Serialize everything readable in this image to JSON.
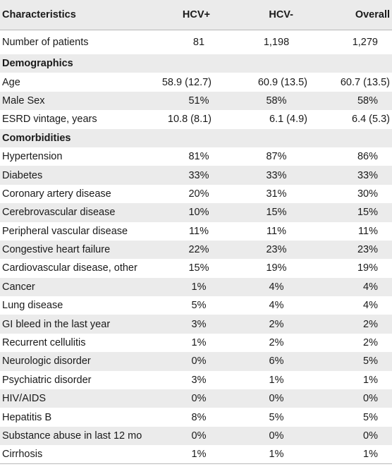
{
  "headers": [
    "Characteristics",
    "HCV+",
    "HCV-",
    "Overall"
  ],
  "rows": [
    {
      "label": "Number of patients",
      "hcv_pos": "81",
      "hcv_neg": "1,198",
      "overall": "1,279",
      "type": "center"
    },
    {
      "label": "Demographics",
      "type": "section"
    },
    {
      "label": "Age",
      "hcv_pos": "58.9 (12.7)",
      "hcv_neg": "60.9 (13.5)",
      "overall": "60.7 (13.5)",
      "type": "right"
    },
    {
      "label": "Male Sex",
      "hcv_pos": "51%",
      "hcv_neg": "58%",
      "overall": "58%",
      "type": "center"
    },
    {
      "label": "ESRD vintage, years",
      "hcv_pos": "10.8 (8.1)",
      "hcv_neg": "6.1 (4.9)",
      "overall": "6.4 (5.3)",
      "type": "right"
    },
    {
      "label": "Comorbidities",
      "type": "section"
    },
    {
      "label": "Hypertension",
      "hcv_pos": "81%",
      "hcv_neg": "87%",
      "overall": "86%",
      "type": "center"
    },
    {
      "label": "Diabetes",
      "hcv_pos": "33%",
      "hcv_neg": "33%",
      "overall": "33%",
      "type": "center"
    },
    {
      "label": "Coronary artery disease",
      "hcv_pos": "20%",
      "hcv_neg": "31%",
      "overall": "30%",
      "type": "center"
    },
    {
      "label": "Cerebrovascular disease",
      "hcv_pos": "10%",
      "hcv_neg": "15%",
      "overall": "15%",
      "type": "center"
    },
    {
      "label": "Peripheral vascular disease",
      "hcv_pos": "11%",
      "hcv_neg": "11%",
      "overall": "11%",
      "type": "center"
    },
    {
      "label": "Congestive heart failure",
      "hcv_pos": "22%",
      "hcv_neg": "23%",
      "overall": "23%",
      "type": "center"
    },
    {
      "label": "Cardiovascular disease, other",
      "hcv_pos": "15%",
      "hcv_neg": "19%",
      "overall": "19%",
      "type": "center"
    },
    {
      "label": "Cancer",
      "hcv_pos": "1%",
      "hcv_neg": "4%",
      "overall": "4%",
      "type": "center"
    },
    {
      "label": "Lung disease",
      "hcv_pos": "5%",
      "hcv_neg": "4%",
      "overall": "4%",
      "type": "center"
    },
    {
      "label": "GI bleed in the last year",
      "hcv_pos": "3%",
      "hcv_neg": "2%",
      "overall": "2%",
      "type": "center"
    },
    {
      "label": "Recurrent cellulitis",
      "hcv_pos": "1%",
      "hcv_neg": "2%",
      "overall": "2%",
      "type": "center"
    },
    {
      "label": "Neurologic disorder",
      "hcv_pos": "0%",
      "hcv_neg": "6%",
      "overall": "5%",
      "type": "center"
    },
    {
      "label": "Psychiatric disorder",
      "hcv_pos": "3%",
      "hcv_neg": "1%",
      "overall": "1%",
      "type": "center"
    },
    {
      "label": "HIV/AIDS",
      "hcv_pos": "0%",
      "hcv_neg": "0%",
      "overall": "0%",
      "type": "center"
    },
    {
      "label": "Hepatitis B",
      "hcv_pos": "8%",
      "hcv_neg": "5%",
      "overall": "5%",
      "type": "center"
    },
    {
      "label": "Substance abuse in last 12 mo",
      "hcv_pos": "0%",
      "hcv_neg": "0%",
      "overall": "0%",
      "type": "center"
    },
    {
      "label": "Cirrhosis",
      "hcv_pos": "1%",
      "hcv_neg": "1%",
      "overall": "1%",
      "type": "center"
    }
  ]
}
